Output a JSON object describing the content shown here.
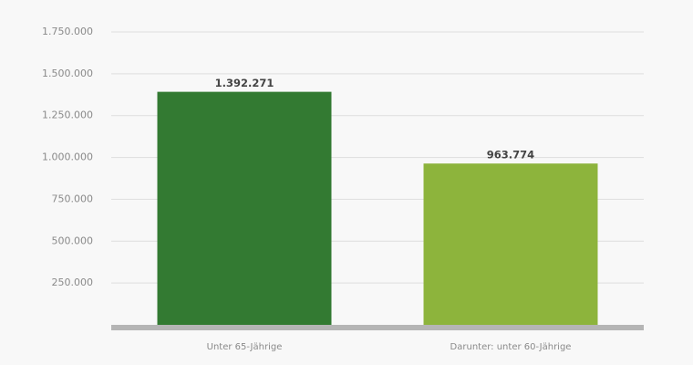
{
  "chart_data": {
    "type": "bar",
    "categories": [
      "Unter 65-Jährige",
      "Darunter: unter 60-Jährige"
    ],
    "values": [
      1392271,
      963774
    ],
    "value_labels": [
      "1.392.271",
      "963.774"
    ],
    "colors": [
      "#337a32",
      "#8db43c"
    ],
    "ylim": [
      0,
      1750000
    ],
    "yticks": [
      {
        "value": 250000,
        "label": "250.000"
      },
      {
        "value": 500000,
        "label": "500.000"
      },
      {
        "value": 750000,
        "label": "750.000"
      },
      {
        "value": 1000000,
        "label": "1.000.000"
      },
      {
        "value": 1250000,
        "label": "1.250.000"
      },
      {
        "value": 1500000,
        "label": "1.500.000"
      },
      {
        "value": 1750000,
        "label": "1.750.000"
      }
    ],
    "grid": true
  }
}
